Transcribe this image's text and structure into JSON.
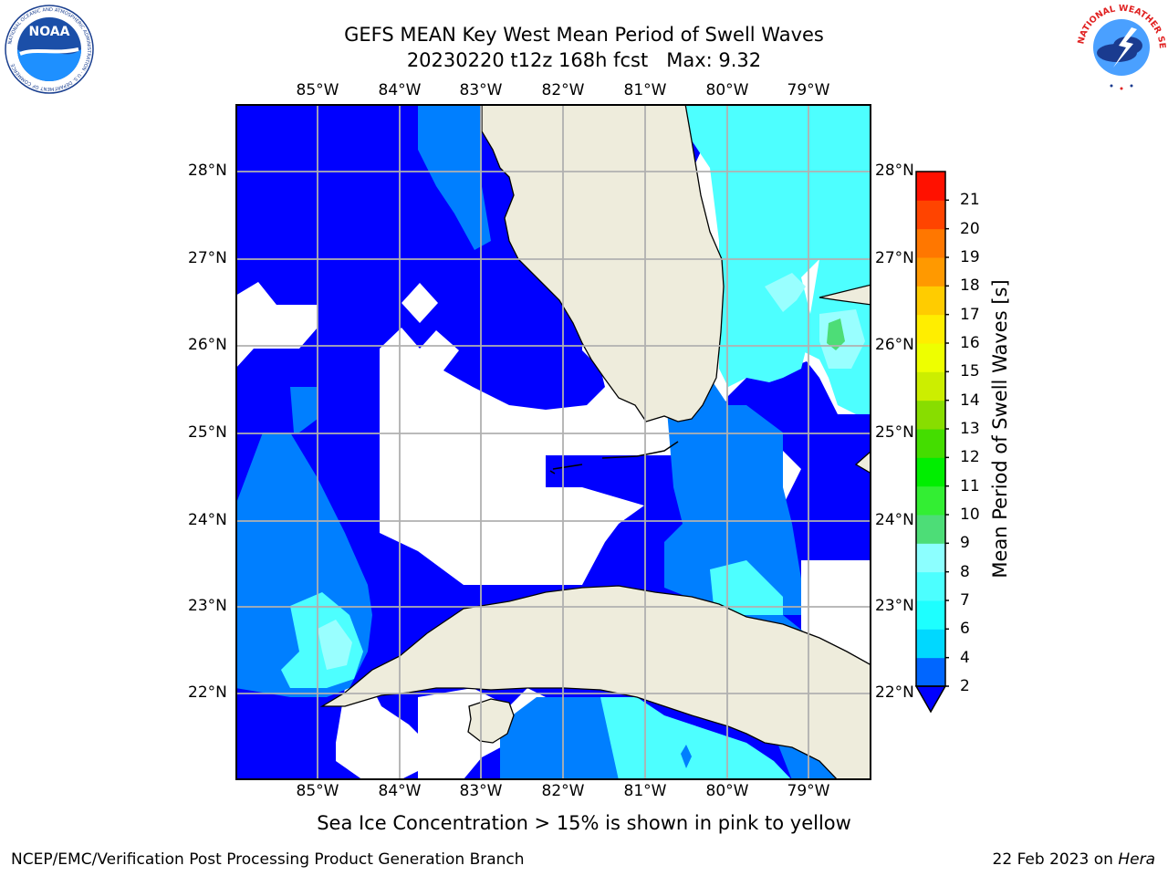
{
  "title": {
    "line1": "GEFS MEAN Key West Mean Period of Swell Waves",
    "line2": "20230220 t12z 168h fcst   Max: 9.32"
  },
  "map": {
    "lon_labels": [
      "85°W",
      "84°W",
      "83°W",
      "82°W",
      "81°W",
      "80°W",
      "79°W"
    ],
    "lat_labels": [
      "28°N",
      "27°N",
      "26°N",
      "25°N",
      "24°N",
      "23°N",
      "22°N"
    ],
    "colors": {
      "land": "#eeecdc",
      "deep_blue": "#0000ff",
      "mid_blue": "#007fff",
      "cyan": "#00ffff",
      "light_cyan": "#4dffff",
      "pale_cyan": "#99ffff",
      "green": "#4dff7a",
      "grid": "#b0b0b0"
    }
  },
  "colorbar": {
    "label": "Mean Period of Swell Waves [s]",
    "ticks": [
      "2",
      "4",
      "6",
      "7",
      "8",
      "9",
      "10",
      "11",
      "12",
      "13",
      "14",
      "15",
      "16",
      "17",
      "18",
      "19",
      "20",
      "21"
    ],
    "bin_colors": [
      "#0066ff",
      "#00d8ff",
      "#1dffff",
      "#4cffff",
      "#8cffff",
      "#4ddd77",
      "#33ee33",
      "#00ee00",
      "#44dd00",
      "#88dd00",
      "#ccee00",
      "#eeff00",
      "#ffee00",
      "#ffcc00",
      "#ff9900",
      "#ff7700",
      "#ff4400",
      "#ff1100"
    ],
    "under_color": "#0000ff"
  },
  "note": "Sea Ice Concentration > 15% is shown in pink to yellow",
  "footer": {
    "left": "NCEP/EMC/Verification Post Processing Product Generation Branch",
    "right_date": "22 Feb 2023 on ",
    "right_host": "Hera"
  },
  "logos": {
    "noaa": {
      "text": "NOAA",
      "ring_text": "NATIONAL OCEANIC AND ATMOSPHERIC ADMINISTRATION · U.S. DEPARTMENT OF COMMERCE"
    },
    "nws": {
      "ring_text": "NATIONAL WEATHER SERVICE"
    }
  }
}
